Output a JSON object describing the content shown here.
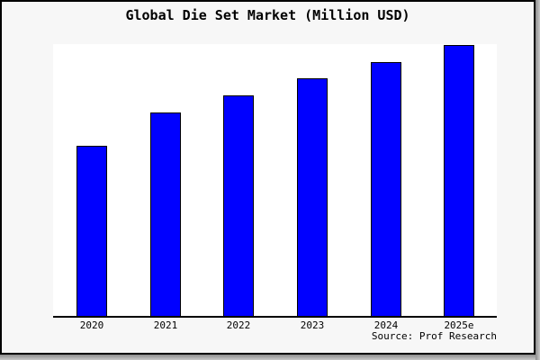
{
  "window": {
    "background_color": "#f7f7f7",
    "plot_background_color": "#ffffff",
    "border_color": "#000000"
  },
  "chart_data": {
    "type": "bar",
    "title": "Global Die Set Market (Million USD)",
    "categories": [
      "2020",
      "2021",
      "2022",
      "2023",
      "2024",
      "2025e"
    ],
    "values": [
      62.6,
      74.8,
      81.1,
      87.4,
      93.4,
      99.7
    ],
    "value_scale_note": "y-axis has no ticks or labels; values are estimated bar heights as percent of plot height",
    "ylim": [
      0,
      100
    ],
    "xlabel": "",
    "ylabel": "",
    "gridlines": false,
    "y_axis_shown": false,
    "legend_position": "none",
    "bar_color": "#0000ff",
    "bar_border_color": "#000000",
    "axis_color": "#000000",
    "source_note": "Source: Prof Research"
  }
}
